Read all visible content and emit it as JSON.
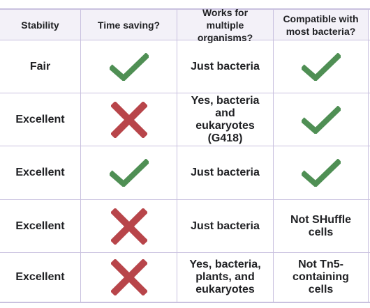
{
  "colors": {
    "grid_line": "#c9c1df",
    "header_bg": "#f3f1f8",
    "check": "#4f8f54",
    "cross": "#b8454a",
    "text": "#202124"
  },
  "headers": {
    "stability": "Stability",
    "time_saving": "Time saving?",
    "multiple_organisms": "Works for multiple organisms?",
    "compatible": "Compatible with most bacteria?"
  },
  "rows": [
    {
      "stability": "Fair",
      "time_saving": "check-icon",
      "organisms": "Just bacteria",
      "compatible": "check-icon"
    },
    {
      "stability": "Excellent",
      "time_saving": "cross-icon",
      "organisms": "Yes, bacteria and eukaryotes (G418)",
      "compatible": "check-icon"
    },
    {
      "stability": "Excellent",
      "time_saving": "check-icon",
      "organisms": "Just bacteria",
      "compatible": "check-icon"
    },
    {
      "stability": "Excellent",
      "time_saving": "cross-icon",
      "organisms": "Just bacteria",
      "compatible": "Not SHuffle cells"
    },
    {
      "stability": "Excellent",
      "time_saving": "cross-icon",
      "organisms": "Yes, bacteria, plants, and eukaryotes",
      "compatible": "Not Tn5-containing cells"
    }
  ]
}
